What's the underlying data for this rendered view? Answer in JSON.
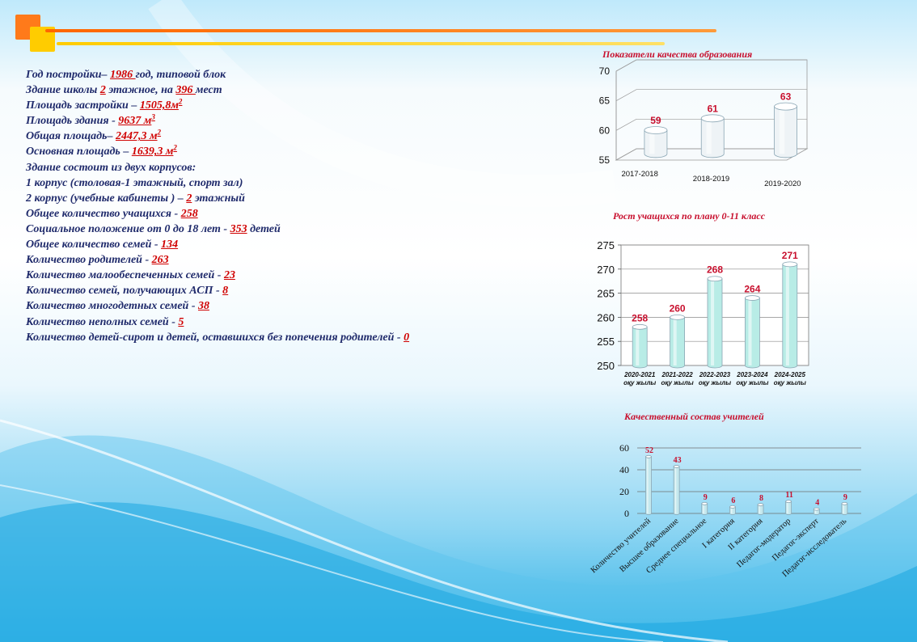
{
  "info_lines": [
    {
      "parts": [
        {
          "t": "Год постройки– "
        },
        {
          "t": "1986 ",
          "hl": true
        },
        {
          "t": "год, типовой  блок"
        }
      ]
    },
    {
      "parts": [
        {
          "t": "Здание школы "
        },
        {
          "t": "2",
          "hl": true
        },
        {
          "t": "  этажное,  на "
        },
        {
          "t": "396 ",
          "hl": true
        },
        {
          "t": "мест"
        }
      ]
    },
    {
      "parts": [
        {
          "t": "Площадь застройки – "
        },
        {
          "t": "1505,8м",
          "hl": true
        },
        {
          "t": "2",
          "hl": true,
          "sup": true
        }
      ]
    },
    {
      "parts": [
        {
          "t": "Площадь здания - "
        },
        {
          "t": "9637 м",
          "hl": true
        },
        {
          "t": "3",
          "hl": true,
          "sup": true
        }
      ]
    },
    {
      "parts": [
        {
          "t": "Общая площадь– "
        },
        {
          "t": "2447,3  м",
          "hl": true
        },
        {
          "t": "2",
          "hl": true,
          "sup": true
        }
      ]
    },
    {
      "parts": [
        {
          "t": "Основная площадь  – "
        },
        {
          "t": "1639,3 м",
          "hl": true
        },
        {
          "t": "2",
          "hl": true,
          "sup": true
        }
      ]
    },
    {
      "parts": [
        {
          "t": "Здание состоит из двух корпусов:"
        }
      ]
    },
    {
      "parts": [
        {
          "t": "1 корпус  (столовая-1  этажный, спорт зал)"
        }
      ]
    },
    {
      "parts": [
        {
          "t": "2 корпус  (учебные кабинеты ) – "
        },
        {
          "t": "2",
          "hl": true
        },
        {
          "t": "  этажный"
        }
      ]
    },
    {
      "parts": [
        {
          "t": "Общее количество учащихся - "
        },
        {
          "t": "258",
          "hl": true
        }
      ]
    },
    {
      "parts": [
        {
          "t": "Социальное положение от 0 до 18 лет  - "
        },
        {
          "t": "353",
          "hl": true
        },
        {
          "t": "  детей"
        }
      ]
    },
    {
      "parts": [
        {
          "t": "Общее количество семей - "
        },
        {
          "t": "134",
          "hl": true
        }
      ]
    },
    {
      "parts": [
        {
          "t": "Количество родителей - "
        },
        {
          "t": "263",
          "hl": true
        }
      ]
    },
    {
      "parts": [
        {
          "t": "Количество малообеспеченных семей - "
        },
        {
          "t": "23",
          "hl": true
        }
      ]
    },
    {
      "parts": [
        {
          "t": "Количество семей, получающих АСП - "
        },
        {
          "t": "8",
          "hl": true
        }
      ]
    },
    {
      "parts": [
        {
          "t": "Количество многодетных семей - "
        },
        {
          "t": "38",
          "hl": true
        }
      ]
    },
    {
      "parts": [
        {
          "t": "Количество неполных семей - "
        },
        {
          "t": "5",
          "hl": true
        }
      ]
    },
    {
      "parts": [
        {
          "t": "Количество детей-сирот и детей, оставшихся без попечения родителей - "
        },
        {
          "t": "0",
          "hl": true
        }
      ],
      "wrap": true
    }
  ],
  "chart_data": [
    {
      "type": "bar",
      "title": "Показатели  качества образования",
      "categories": [
        "2017-2018",
        "2018-2019",
        "2019-2020"
      ],
      "values": [
        59,
        61,
        63
      ],
      "ylim": [
        55,
        70
      ],
      "yticks": [
        55,
        60,
        65,
        70
      ],
      "grid": true,
      "bar_color": "#eef3f6",
      "label_color": "#c8102e"
    },
    {
      "type": "bar",
      "title": "Рост учащихся по плану 0-11 класс",
      "categories": [
        [
          "2020-2021",
          "оқу жылы"
        ],
        [
          "2021-2022",
          "оқу жылы"
        ],
        [
          "2022-2023",
          "оқу жылы"
        ],
        [
          "2023-2024",
          "оқу жылы"
        ],
        [
          "2024-2025",
          "оқу жылы"
        ]
      ],
      "values": [
        258,
        260,
        268,
        264,
        271
      ],
      "ylim": [
        250,
        275
      ],
      "yticks": [
        250,
        255,
        260,
        265,
        270,
        275
      ],
      "grid": true,
      "bar_color": "#b8ece6",
      "label_color": "#c8102e"
    },
    {
      "type": "bar",
      "title": "Качественный состав учителей",
      "categories": [
        "Количество учителей",
        "Высшее образование",
        "Среднее специальное",
        "I категория",
        "II категория",
        "Педагог-модератор",
        "Педагог-эксперт",
        "Педагог-исследователь"
      ],
      "values": [
        52,
        43,
        9,
        6,
        8,
        11,
        4,
        9
      ],
      "ylim": [
        0,
        60
      ],
      "yticks": [
        0,
        20,
        40,
        60
      ],
      "grid": true,
      "bar_color": "#c4e8ee",
      "label_color": "#c8102e"
    }
  ]
}
